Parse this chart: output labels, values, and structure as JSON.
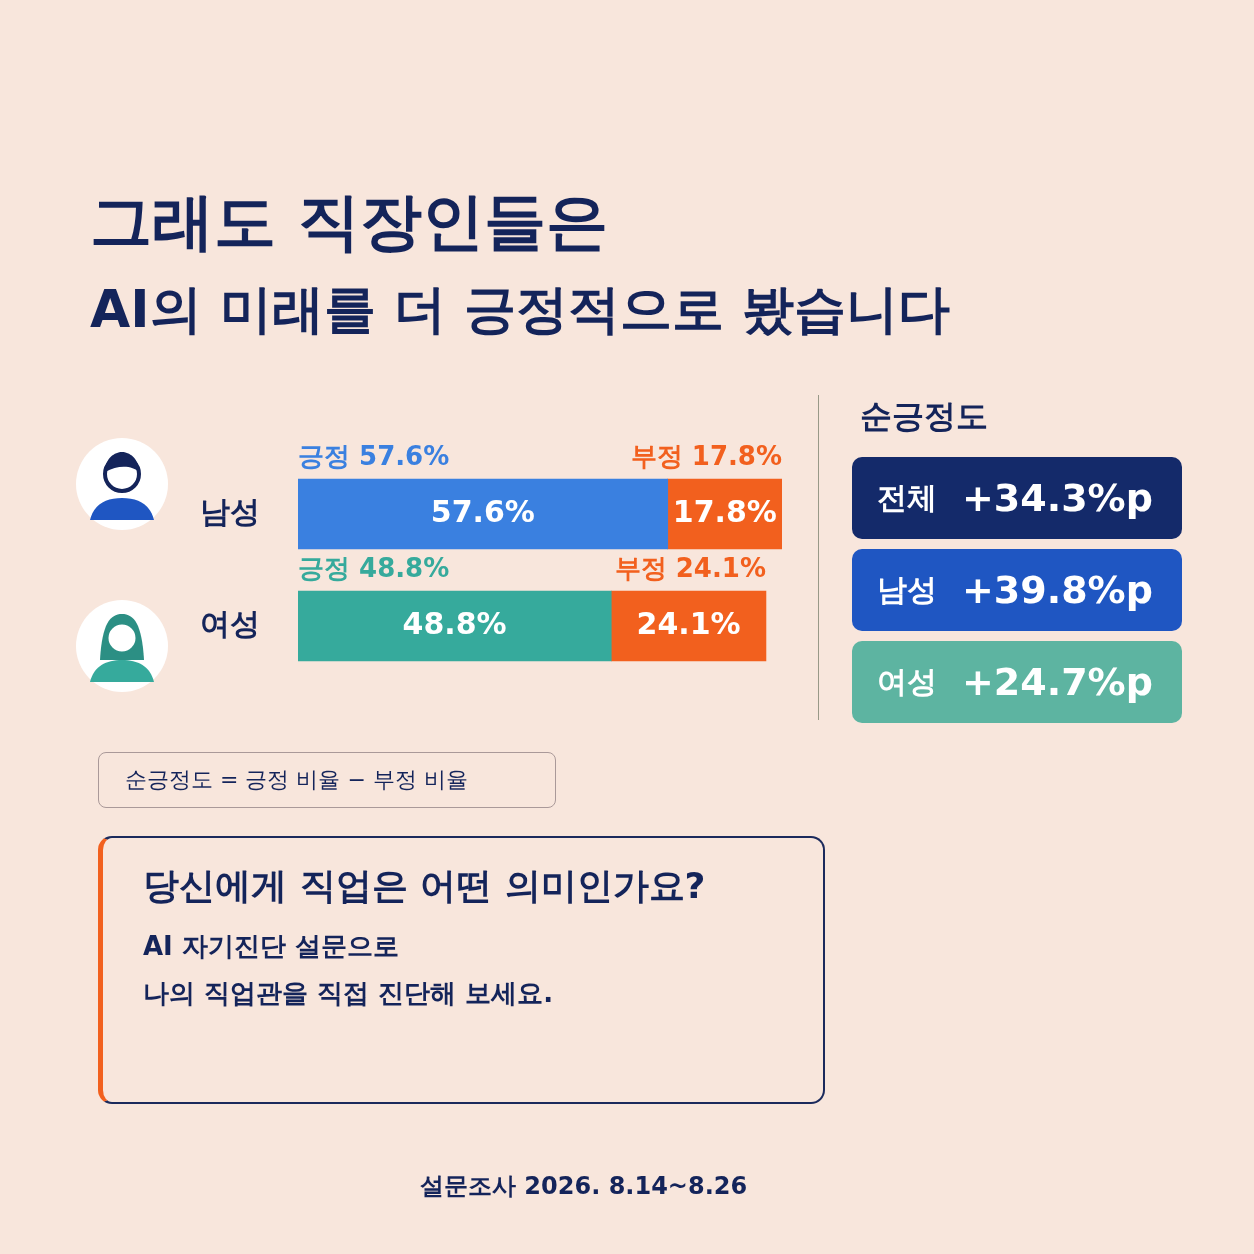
{
  "chart_data": [
    {
      "type": "bar",
      "orientation": "horizontal",
      "stacked": true,
      "title": "그래도 직장인들은",
      "subtitle": "AI의 미래를 더 긍정적으로 봤습니다",
      "categories": [
        "남성",
        "여성"
      ],
      "series": [
        {
          "name": "긍정",
          "colors": [
            "#3a80e0",
            "#36aa9c"
          ],
          "values": [
            57.6,
            48.8
          ],
          "value_labels": [
            "57.6%",
            "48.8%"
          ]
        },
        {
          "name": "부정",
          "color": "#f2601e",
          "values": [
            17.8,
            24.1
          ],
          "value_labels": [
            "17.8%",
            "24.1%"
          ]
        }
      ],
      "xlim": [
        0,
        75.4
      ],
      "tick_labels": "y",
      "legend": false,
      "annotations": [
        "순긍정도 = 긍정 비율 − 부정 비율",
        "당신에게 직업은 어떤 의미인가요?",
        "AI 자기진단 설문으로",
        "나의 직업관을 직접 진단해 보세요.",
        "설문조사 2026. 8.14~8.26"
      ]
    },
    {
      "type": "other",
      "title": "순긍정도",
      "categories": [
        "전체",
        "남성",
        "여성"
      ],
      "value_labels": [
        "+34.3%p",
        "+39.8%p",
        "+24.7%p"
      ],
      "colors": [
        "#142a6a",
        "#1f56c2",
        "#5db4a1"
      ]
    }
  ]
}
